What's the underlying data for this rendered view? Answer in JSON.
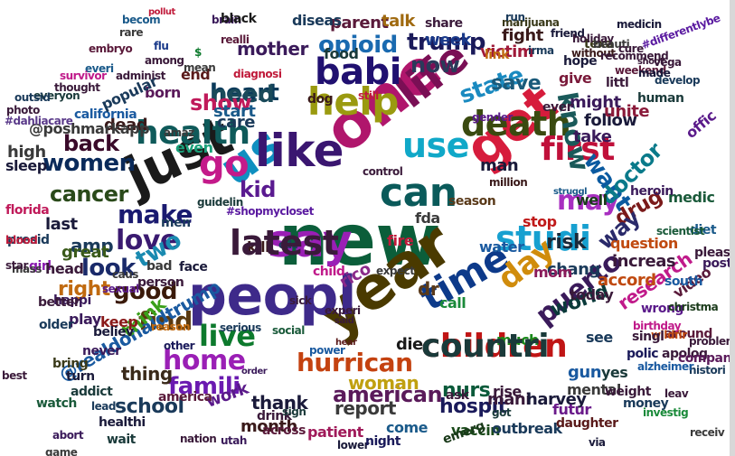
{
  "words": [
    {
      "text": "new",
      "color": "#0b5e3a"
    },
    {
      "text": "year",
      "color": "#4a3a00"
    },
    {
      "text": "one",
      "color": "#b0166c"
    },
    {
      "text": "peopl",
      "color": "#3e2a8a"
    },
    {
      "text": "us",
      "color": "#0f8fc0"
    },
    {
      "text": "get",
      "color": "#d61c3c"
    },
    {
      "text": "just",
      "color": "#1a1a1a"
    },
    {
      "text": "say",
      "color": "#9a1fb5"
    },
    {
      "text": "like",
      "color": "#3a1670"
    },
    {
      "text": "can",
      "color": "#0a5a5a"
    },
    {
      "text": "life",
      "color": "#7a0f55"
    },
    {
      "text": "help",
      "color": "#9a9a10"
    },
    {
      "text": "babi",
      "color": "#201070"
    },
    {
      "text": "death",
      "color": "#3a4a10"
    },
    {
      "text": "time",
      "color": "#0d3a8a"
    },
    {
      "text": "health",
      "color": "#0f5a5a"
    },
    {
      "text": "go",
      "color": "#c41a8a"
    },
    {
      "text": "use",
      "color": "#10a8c8"
    },
    {
      "text": "children",
      "color": "#c01515"
    },
    {
      "text": "studi",
      "color": "#17a0d0"
    },
    {
      "text": "day",
      "color": "#d08c0c"
    },
    {
      "text": "first",
      "color": "#c0103a"
    },
    {
      "text": "love",
      "color": "#3a1a70"
    },
    {
      "text": "may",
      "color": "#a82fc0"
    },
    {
      "text": "live",
      "color": "#0d7a2d"
    },
    {
      "text": "home",
      "color": "#9a1fb5"
    },
    {
      "text": "hurrican",
      "color": "#c44210"
    },
    {
      "text": "women",
      "color": "#0a2a5a"
    },
    {
      "text": "know",
      "color": "#1a5a5a"
    },
    {
      "text": "find",
      "color": "#5a3a10"
    },
    {
      "text": "puerto",
      "color": "#3a1a5a"
    },
    {
      "text": "opioid",
      "color": "#1a6ab0"
    },
    {
      "text": "make",
      "color": "#1a1a70"
    },
    {
      "text": "want",
      "color": "#0a5aa0"
    },
    {
      "text": "two",
      "color": "#1a8ab0"
    },
    {
      "text": "kid",
      "color": "#5a1a90"
    },
    {
      "text": "cancer",
      "color": "#2a4a1a"
    },
    {
      "text": "heart",
      "color": "#0a3a5a"
    },
    {
      "text": "need",
      "color": "#1a4a5a"
    },
    {
      "text": "back",
      "color": "#3a0a2a"
    },
    {
      "text": "state",
      "color": "#1a8ac0"
    },
    {
      "text": "look",
      "color": "#1a2a6a"
    },
    {
      "text": "good",
      "color": "#3a1a0a"
    },
    {
      "text": "famili",
      "color": "#6a1ab0"
    },
    {
      "text": "american",
      "color": "#5a1a5a"
    },
    {
      "text": "school",
      "color": "#1a3a5a"
    },
    {
      "text": "report",
      "color": "#3a3a3a"
    },
    {
      "text": "nurs",
      "color": "#0a5a3a"
    },
    {
      "text": "hospit",
      "color": "#1a1a5a"
    },
    {
      "text": "trump",
      "color": "#1a1a5a"
    },
    {
      "text": "doctor",
      "color": "#0a7a8a"
    },
    {
      "text": "drug",
      "color": "#7a1a1a"
    },
    {
      "text": "way",
      "color": "#2a2a6a"
    },
    {
      "text": "risk",
      "color": "#1a2a3a"
    },
    {
      "text": "world",
      "color": "#0a3a3a"
    },
    {
      "text": "research",
      "color": "#c01a8a"
    },
    {
      "text": "right",
      "color": "#c06a10"
    },
    {
      "text": "@realdonaldtrump",
      "color": "#1a5aa0"
    },
    {
      "text": "thank",
      "color": "#1a1a3a"
    },
    {
      "text": "woman",
      "color": "#c0a010"
    },
    {
      "text": "rico",
      "color": "#8a2a8a"
    },
    {
      "text": "take",
      "color": "#3a1a5a"
    },
    {
      "text": "now",
      "color": "#2a3a5a"
    },
    {
      "text": "week",
      "color": "#1a3a8a"
    },
    {
      "text": "parent",
      "color": "#5a1a3a"
    },
    {
      "text": "mother",
      "color": "#3a1a5a"
    },
    {
      "text": "show",
      "color": "#c01a5a"
    },
    {
      "text": "amp",
      "color": "#1a3a5a"
    },
    {
      "text": "last",
      "color": "#1a1a3a"
    },
    {
      "text": "great",
      "color": "#3a5a1a"
    },
    {
      "text": "think",
      "color": "#3aa01a"
    },
    {
      "text": "thing",
      "color": "#3a2a1a"
    },
    {
      "text": "work",
      "color": "#5a1a8a"
    },
    {
      "text": "month",
      "color": "#3a1a1a"
    },
    {
      "text": "patient",
      "color": "#a01a5a"
    },
    {
      "text": "come",
      "color": "#1a5a8a"
    },
    {
      "text": "vaccin",
      "color": "#1a4a1a"
    },
    {
      "text": "mani",
      "color": "#3a1a3a"
    },
    {
      "text": "gun",
      "color": "#1a5aa0"
    },
    {
      "text": "harvey",
      "color": "#1a1a3a"
    },
    {
      "text": "save",
      "color": "#1a5a7a"
    },
    {
      "text": "die",
      "color": "#1a1a1a"
    },
    {
      "text": "dead",
      "color": "#3a1a1a"
    },
    {
      "text": "care",
      "color": "#1a3a5a"
    },
    {
      "text": "start",
      "color": "#1a5a8a"
    },
    {
      "text": "even",
      "color": "#1aa07a"
    },
    {
      "text": "dr",
      "color": "#5a3a1a"
    },
    {
      "text": "man",
      "color": "#1a1a3a"
    },
    {
      "text": "fda",
      "color": "#3a3a3a"
    },
    {
      "text": "chang",
      "color": "#1a3a5a"
    },
    {
      "text": "increas",
      "color": "#3a1a3a"
    },
    {
      "text": "follow",
      "color": "#1a1a3a"
    },
    {
      "text": "unite",
      "color": "#8a1a3a"
    },
    {
      "text": "might",
      "color": "#3a1a5a"
    },
    {
      "text": "give",
      "color": "#7a1a3a"
    },
    {
      "text": "keep",
      "color": "#8a1a1a"
    },
    {
      "text": "mom",
      "color": "#8a1a5a"
    },
    {
      "text": "today",
      "color": "#3a1a3a"
    },
    {
      "text": "accord",
      "color": "#c04a10"
    },
    {
      "text": "kill",
      "color": "#3a1a1a"
    },
    {
      "text": "born",
      "color": "#5a1a5a"
    },
    {
      "text": "end",
      "color": "#5a1a1a"
    },
    {
      "text": "victim",
      "color": "#a01a3a"
    },
    {
      "text": "fight",
      "color": "#3a1a1a"
    },
    {
      "text": "talk",
      "color": "#a06a10"
    },
    {
      "text": "diseas",
      "color": "#1a3a5a"
    },
    {
      "text": "food",
      "color": "#1a3a3a"
    },
    {
      "text": "rise",
      "color": "#3a1a3a"
    },
    {
      "text": "call",
      "color": "#1a8a3a"
    },
    {
      "text": "see",
      "color": "#1a3a5a"
    },
    {
      "text": "play",
      "color": "#3a1a5a"
    },
    {
      "text": "much",
      "color": "#1a8a1a"
    },
    {
      "text": "well",
      "color": "#1a3a1a"
    },
    {
      "text": "stop",
      "color": "#c01a1a"
    },
    {
      "text": "yes",
      "color": "#1a3a3a"
    },
    {
      "text": "futur",
      "color": "#6a1a8a"
    },
    {
      "text": "water",
      "color": "#1a5aa0"
    },
    {
      "text": "outbreak",
      "color": "#1a3a5a"
    },
    {
      "text": "question",
      "color": "#c04a10"
    },
    {
      "text": "video",
      "color": "#5a1a3a"
    },
    {
      "text": "wrong",
      "color": "#5a1a8a"
    },
    {
      "text": "offic",
      "color": "#5a1a8a"
    },
    {
      "text": "medic",
      "color": "#1a5a3a"
    },
    {
      "text": "diet",
      "color": "#1a5a8a"
    },
    {
      "text": "pleas",
      "color": "#3a1a3a"
    },
    {
      "text": "post",
      "color": "#3a1a5a"
    },
    {
      "text": "south",
      "color": "#1a5aa0"
    },
    {
      "text": "mental",
      "color": "#3a3a3a"
    },
    {
      "text": "polic",
      "color": "#1a1a5a"
    },
    {
      "text": "apolog",
      "color": "#3a1a3a"
    },
    {
      "text": "around",
      "color": "#5a1a3a"
    },
    {
      "text": "money",
      "color": "#1a3a5a"
    },
    {
      "text": "daughter",
      "color": "#5a1a1a"
    },
    {
      "text": "share",
      "color": "#3a1a3a"
    },
    {
      "text": "marijuana",
      "color": "#3a3a1a"
    },
    {
      "text": "weight",
      "color": "#3a1a3a"
    },
    {
      "text": "high",
      "color": "#3a3a3a"
    },
    {
      "text": "@poshmarkapp",
      "color": "#3a3a3a"
    },
    {
      "text": "sleep",
      "color": "#1a1a3a"
    },
    {
      "text": "florida",
      "color": "#c01a5a"
    },
    {
      "text": "presid",
      "color": "#1a3a5a"
    },
    {
      "text": "girl",
      "color": "#8a1ab0"
    },
    {
      "text": "happi",
      "color": "#3a1a5a"
    },
    {
      "text": "older",
      "color": "#1a3a5a"
    },
    {
      "text": "better",
      "color": "#3a1a3a"
    },
    {
      "text": "believ",
      "color": "#1a1a3a"
    },
    {
      "text": "never",
      "color": "#3a1a5a"
    },
    {
      "text": "bring",
      "color": "#3a3a1a"
    },
    {
      "text": "turn",
      "color": "#1a1a3a"
    },
    {
      "text": "addict",
      "color": "#1a3a3a"
    },
    {
      "text": "watch",
      "color": "#1a5a3a"
    },
    {
      "text": "lead",
      "color": "#1a3a5a"
    },
    {
      "text": "healthi",
      "color": "#1a1a3a"
    },
    {
      "text": "wait",
      "color": "#1a3a3a"
    },
    {
      "text": "nation",
      "color": "#3a1a3a"
    },
    {
      "text": "utah",
      "color": "#3a1a5a"
    },
    {
      "text": "across",
      "color": "#5a1a3a"
    },
    {
      "text": "lower",
      "color": "#1a1a3a"
    },
    {
      "text": "night",
      "color": "#1a1a5a"
    },
    {
      "text": "emerg",
      "color": "#1a3a1a"
    },
    {
      "text": "drink",
      "color": "#3a1a3a"
    },
    {
      "text": "america",
      "color": "#5a1a3a"
    },
    {
      "text": "other",
      "color": "#1a1a5a"
    },
    {
      "text": "serious",
      "color": "#1a3a5a"
    },
    {
      "text": "reason",
      "color": "#c06a10"
    },
    {
      "text": "person",
      "color": "#3a1a3a"
    },
    {
      "text": "sexual",
      "color": "#5a1a8a"
    },
    {
      "text": "face",
      "color": "#1a1a3a"
    },
    {
      "text": "men",
      "color": "#1a3a5a"
    },
    {
      "text": "sick",
      "color": "#3a1a3a"
    },
    {
      "text": "social",
      "color": "#1a5a3a"
    },
    {
      "text": "dog",
      "color": "#3a1a1a"
    },
    {
      "text": "still",
      "color": "#c01a3a"
    },
    {
      "text": "season",
      "color": "#5a3a1a"
    },
    {
      "text": "ever",
      "color": "#3a1a3a"
    },
    {
      "text": "hope",
      "color": "#1a1a3a"
    },
    {
      "text": "texa",
      "color": "#3a3a1a"
    },
    {
      "text": "littl",
      "color": "#3a1a3a"
    },
    {
      "text": "human",
      "color": "#1a3a3a"
    },
    {
      "text": "mean",
      "color": "#3a3a3a"
    },
    {
      "text": "realli",
      "color": "#5a1a3a"
    },
    {
      "text": "brain",
      "color": "#3a1a5a"
    },
    {
      "text": "black",
      "color": "#1a1a1a"
    },
    {
      "text": "friend",
      "color": "#1a1a3a"
    },
    {
      "text": "holiday",
      "color": "#3a1a3a"
    },
    {
      "text": "irma",
      "color": "#1a3a5a"
    },
    {
      "text": "without",
      "color": "#3a1a1a"
    },
    {
      "text": "gender",
      "color": "#5a1a8a"
    },
    {
      "text": "expect",
      "color": "#3a3a3a"
    },
    {
      "text": "control",
      "color": "#3a1a3a"
    },
    {
      "text": "million",
      "color": "#3a1a1a"
    },
    {
      "text": "struggl",
      "color": "#1a5a8a"
    },
    {
      "text": "ask",
      "color": "#3a1a3a"
    },
    {
      "text": "got",
      "color": "#1a3a3a"
    },
    {
      "text": "via",
      "color": "#1a1a3a"
    },
    {
      "text": "best",
      "color": "#3a1a3a"
    },
    {
      "text": "game",
      "color": "#3a3a3a"
    },
    {
      "text": "abort",
      "color": "#3a1a5a"
    },
    {
      "text": "everi",
      "color": "#1a5a8a"
    },
    {
      "text": "thought",
      "color": "#3a1a3a"
    },
    {
      "text": "#dahliacare",
      "color": "#5a3a8a"
    },
    {
      "text": "california",
      "color": "#1a5aa0"
    },
    {
      "text": "popular",
      "color": "#1a3a5a"
    },
    {
      "text": "administ",
      "color": "#3a1a3a"
    },
    {
      "text": "christma",
      "color": "#1a3a1a"
    },
    {
      "text": "scientist",
      "color": "#1a5a3a"
    },
    {
      "text": "heroin",
      "color": "#3a1a5a"
    },
    {
      "text": "wildfir",
      "color": "#c04a10"
    },
    {
      "text": "problem",
      "color": "#3a1a3a"
    },
    {
      "text": "histori",
      "color": "#1a3a5a"
    },
    {
      "text": "investig",
      "color": "#1a8a3a"
    },
    {
      "text": "leav",
      "color": "#3a1a3a"
    },
    {
      "text": "receiv",
      "color": "#3a3a3a"
    },
    {
      "text": "compani",
      "color": "#5a1a5a"
    },
    {
      "text": "singl",
      "color": "#3a1a3a"
    },
    {
      "text": "alzheimer",
      "color": "#1a5aa0"
    },
    {
      "text": "birthday",
      "color": "#c01a8a"
    },
    {
      "text": "experi",
      "color": "#3a1a3a"
    },
    {
      "text": "power",
      "color": "#1a5aa0"
    },
    {
      "text": "order",
      "color": "#3a1a5a"
    },
    {
      "text": "hear",
      "color": "#5a1a1a"
    },
    {
      "text": "said",
      "color": "#3a1a3a"
    },
    {
      "text": "child",
      "color": "#c01a8a"
    },
    {
      "text": "cdc",
      "color": "#1a3a5a"
    },
    {
      "text": "bad",
      "color": "#3a3a3a"
    },
    {
      "text": "sign",
      "color": "#1a3a3a"
    },
    {
      "text": "latest",
      "color": "#3a1a3a"
    },
    {
      "text": "fire",
      "color": "#c01a3a"
    },
    {
      "text": "head",
      "color": "#3a1a3a"
    },
    {
      "text": "mass",
      "color": "#3a3a3a"
    },
    {
      "text": "link",
      "color": "#c06a10"
    },
    {
      "text": "run",
      "color": "#1a3a5a"
    },
    {
      "text": "becom",
      "color": "#1a5a8a"
    },
    {
      "text": "rare",
      "color": "#3a3a3a"
    },
    {
      "text": "$",
      "color": "#0d7a2d"
    },
    {
      "text": "flu",
      "color": "#1a3a8a"
    },
    {
      "text": "pollut",
      "color": "#c01a3a"
    },
    {
      "text": "medicin",
      "color": "#1a1a3a"
    },
    {
      "text": "beauti",
      "color": "#3a3a3a"
    },
    {
      "text": "cure",
      "color": "#3a1a3a"
    },
    {
      "text": "weekend",
      "color": "#5a1a3a"
    },
    {
      "text": "recommend",
      "color": "#3a1a3a"
    },
    {
      "text": "made",
      "color": "#1a1a3a"
    },
    {
      "text": "vega",
      "color": "#3a1a3a"
    },
    {
      "text": "develop",
      "color": "#1a3a5a"
    },
    {
      "text": "shoot",
      "color": "#3a1a3a"
    },
    {
      "text": "#differentlybe",
      "color": "#5a1aa0"
    },
    {
      "text": "amaz",
      "color": "#3a3a3a"
    },
    {
      "text": "diagnosi",
      "color": "#c01a3a"
    },
    {
      "text": "among",
      "color": "#3a1a3a"
    },
    {
      "text": "survivor",
      "color": "#c01a8a"
    },
    {
      "text": "embryo",
      "color": "#5a1a3a"
    },
    {
      "text": "everyon",
      "color": "#1a3a3a"
    },
    {
      "text": "outsid",
      "color": "#1a3a5a"
    },
    {
      "text": "photo",
      "color": "#3a1a3a"
    },
    {
      "text": "guidelin",
      "color": "#1a3a3a"
    },
    {
      "text": "#shopmycloset",
      "color": "#5a1aa0"
    },
    {
      "text": "caus",
      "color": "#3a3a3a"
    },
    {
      "text": "star",
      "color": "#3a1a3a"
    },
    {
      "text": "blood",
      "color": "#c01a3a"
    },
    {
      "text": "countri",
      "color": "#1a3a3a"
    },
    {
      "text": "media",
      "color": "#1a3a5a"
    },
    {
      "text": "music",
      "color": "#1a3a5a"
    },
    {
      "text": "learn",
      "color": "#1a5a8a"
    },
    {
      "text": "alway",
      "color": "#3a1a3a"
    },
    {
      "text": "feel",
      "color": "#3a1a3a"
    },
    {
      "text": "anti",
      "color": "#3a3a3a"
    },
    {
      "text": "left",
      "color": "#1a1a3a"
    },
    {
      "text": "two",
      "color": "#1a8ab0"
    },
    {
      "text": "light",
      "color": "#3a3a3a"
    },
    {
      "text": "took",
      "color": "#3a1a3a"
    },
    {
      "text": "children",
      "color": "#c01515"
    }
  ]
}
